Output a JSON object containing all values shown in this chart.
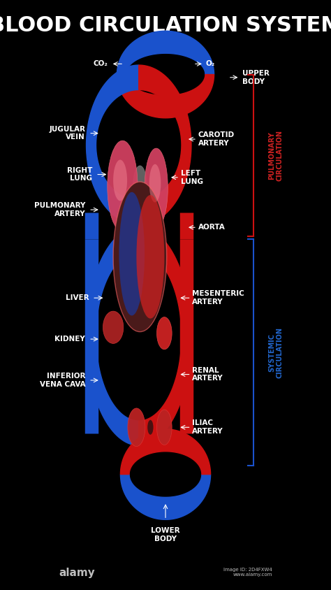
{
  "title": "BLOOD CIRCULATION SYSTEM",
  "background_color": "#000000",
  "title_color": "#ffffff",
  "title_fontsize": 22,
  "blue_color": "#1a52cc",
  "red_color": "#cc1111",
  "dark_red": "#8b0000",
  "label_color": "#ffffff",
  "label_fontsize": 7.5,
  "arrow_color": "#ffffff",
  "pulm_box_color": "#cc2222",
  "syst_box_color": "#2266cc",
  "alamy_text": "alamy",
  "image_id": "Image ID: 2D4FXW4\nwww.alamy.com"
}
